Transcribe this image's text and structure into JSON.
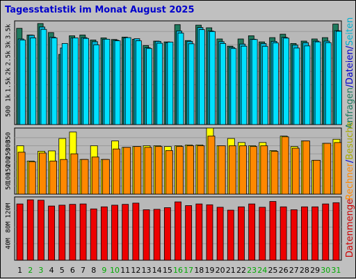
{
  "title": "Tagesstatistik im Monat August 2025",
  "days": [
    "1",
    "2",
    "3",
    "4",
    "5",
    "6",
    "7",
    "8",
    "9",
    "10",
    "11",
    "12",
    "13",
    "14",
    "15",
    "16",
    "17",
    "18",
    "19",
    "20",
    "21",
    "22",
    "23",
    "24",
    "25",
    "26",
    "27",
    "28",
    "29",
    "30",
    "31"
  ],
  "weekend_days": [
    "2",
    "3",
    "9",
    "10",
    "16",
    "17",
    "23",
    "24",
    "30",
    "31"
  ],
  "colors": {
    "frame_bg": "#c0c0c0",
    "plot_bg": "#b8b8b8",
    "hits": "#1e7a5e",
    "files": "#00b0d0",
    "pages": "#00e0ff",
    "visits": "#ffff00",
    "sites": "#ff8800",
    "kbytes": "#ee0000",
    "weekend_label": "#00aa00",
    "weekday_label": "#000000"
  },
  "legend_right": {
    "top_parts": [
      "Anfragen",
      "/",
      "Dateien",
      "/",
      "Seiten"
    ],
    "top_part_colors": [
      "#1e7a5e",
      "#0000cc",
      "#0000cc",
      "#0000cc",
      "#00b0d0"
    ],
    "middle_parts": [
      "Rechner",
      "/",
      "Besuche"
    ],
    "middle_part_colors": [
      "#ff8800",
      "#0000cc",
      "#aaaa00"
    ],
    "bottom": "Datenmenge",
    "bottom_color": "#cc0000"
  },
  "chart_data": [
    {
      "type": "bar",
      "panel": "top",
      "categories": [
        "1",
        "2",
        "3",
        "4",
        "5",
        "6",
        "7",
        "8",
        "9",
        "10",
        "11",
        "12",
        "13",
        "14",
        "15",
        "16",
        "17",
        "18",
        "19",
        "20",
        "21",
        "22",
        "23",
        "24",
        "25",
        "26",
        "27",
        "28",
        "29",
        "30",
        "31"
      ],
      "yticks": [
        "500",
        "1k",
        "1.5k",
        "2k",
        "2.5k",
        "3k",
        "3.5k"
      ],
      "ylim": [
        0,
        3900
      ],
      "series": [
        {
          "name": "Anfragen",
          "values": [
            3620,
            3370,
            3800,
            3460,
            2640,
            3340,
            3370,
            3180,
            3260,
            3200,
            3290,
            3210,
            2970,
            3140,
            3110,
            3760,
            3160,
            3740,
            3640,
            3220,
            2950,
            3220,
            3340,
            3110,
            3270,
            3400,
            3050,
            3140,
            3220,
            3270,
            3780
          ]
        },
        {
          "name": "Dateien",
          "values": [
            3220,
            3360,
            3670,
            3290,
            2880,
            3260,
            3270,
            3120,
            3210,
            3170,
            3260,
            3230,
            2890,
            3130,
            3080,
            3520,
            3130,
            3650,
            3520,
            3120,
            2900,
            3030,
            3210,
            3050,
            3130,
            3280,
            2990,
            3080,
            3140,
            3140,
            3530
          ]
        },
        {
          "name": "Seiten",
          "values": [
            3180,
            3260,
            3580,
            3260,
            3050,
            3260,
            3240,
            3000,
            3210,
            3150,
            3270,
            3150,
            2860,
            3060,
            3100,
            3440,
            3040,
            3570,
            3500,
            3050,
            2860,
            2950,
            3200,
            2940,
            3070,
            3250,
            2880,
            2960,
            3110,
            3080,
            3510
          ]
        }
      ]
    },
    {
      "type": "bar",
      "panel": "middle",
      "categories": [
        "1",
        "2",
        "3",
        "4",
        "5",
        "6",
        "7",
        "8",
        "9",
        "10",
        "11",
        "12",
        "13",
        "14",
        "15",
        "16",
        "17",
        "18",
        "19",
        "20",
        "21",
        "22",
        "23",
        "24",
        "25",
        "26",
        "27",
        "28",
        "29",
        "30",
        "31"
      ],
      "yticks": [
        "50",
        "100",
        "150",
        "200",
        "250",
        "300",
        "350"
      ],
      "ylim": [
        0,
        410
      ],
      "series": [
        {
          "name": "Rechner",
          "values": [
            300,
            205,
            266,
            268,
            345,
            385,
            215,
            300,
            215,
            330,
            290,
            295,
            300,
            300,
            295,
            300,
            305,
            305,
            410,
            300,
            345,
            320,
            300,
            320,
            270,
            360,
            295,
            330,
            210,
            315,
            340
          ]
        },
        {
          "name": "Besuche",
          "values": [
            260,
            200,
            255,
            205,
            215,
            250,
            215,
            230,
            215,
            280,
            290,
            295,
            290,
            295,
            270,
            295,
            300,
            300,
            360,
            300,
            300,
            300,
            295,
            300,
            265,
            355,
            285,
            330,
            210,
            315,
            320
          ]
        }
      ]
    },
    {
      "type": "bar",
      "panel": "bottom",
      "categories": [
        "1",
        "2",
        "3",
        "4",
        "5",
        "6",
        "7",
        "8",
        "9",
        "10",
        "11",
        "12",
        "13",
        "14",
        "15",
        "16",
        "17",
        "18",
        "19",
        "20",
        "21",
        "22",
        "23",
        "24",
        "25",
        "26",
        "27",
        "28",
        "29",
        "30",
        "31"
      ],
      "yticks": [
        "40M",
        "80M",
        "120M"
      ],
      "ylim": [
        0,
        153
      ],
      "series": [
        {
          "name": "Datenmenge",
          "values": [
            136,
            146,
            145,
            131,
            133,
            135,
            136,
            124,
            129,
            133,
            135,
            138,
            122,
            123,
            127,
            141,
            132,
            136,
            134,
            128,
            121,
            129,
            136,
            128,
            142,
            129,
            122,
            129,
            129,
            136,
            139
          ]
        }
      ]
    }
  ]
}
